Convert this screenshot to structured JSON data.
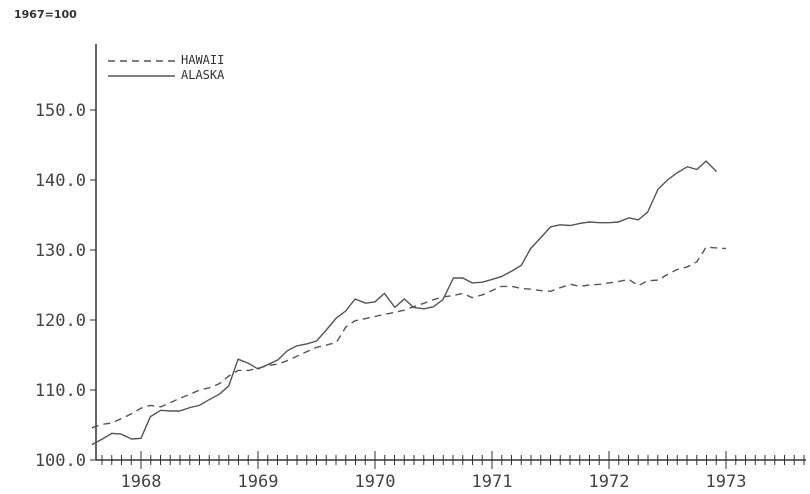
{
  "chart_data": {
    "type": "line",
    "index_note": "1967=100",
    "title": "",
    "xlabel": "",
    "ylabel": "",
    "y_ticks": [
      100,
      110,
      120,
      130,
      140,
      150
    ],
    "y_tick_labels": [
      "100.0",
      "110.0",
      "120.0",
      "130.0",
      "140.0",
      "150.0"
    ],
    "ylim": [
      100,
      150
    ],
    "xlim": [
      1967.53,
      1973.42
    ],
    "x_tick_labels": [
      "1968",
      "1969",
      "1970",
      "1971",
      "1972",
      "1973"
    ],
    "x_tick_positions": [
      1968.0,
      1969.0,
      1970.0,
      1971.0,
      1972.0,
      1973.0
    ],
    "legend_position": "top-left",
    "grid": false,
    "series": [
      {
        "name": "HAWAII",
        "style": "dashed",
        "color": "#555555",
        "points": [
          [
            1967.58,
            104.6
          ],
          [
            1967.67,
            105.1
          ],
          [
            1967.75,
            105.3
          ],
          [
            1967.83,
            105.9
          ],
          [
            1967.92,
            106.6
          ],
          [
            1968.0,
            107.4
          ],
          [
            1968.08,
            107.8
          ],
          [
            1968.17,
            107.6
          ],
          [
            1968.25,
            108.2
          ],
          [
            1968.33,
            108.8
          ],
          [
            1968.42,
            109.4
          ],
          [
            1968.5,
            110.0
          ],
          [
            1968.58,
            110.3
          ],
          [
            1968.67,
            110.9
          ],
          [
            1968.75,
            112.0
          ],
          [
            1968.83,
            112.8
          ],
          [
            1968.92,
            112.8
          ],
          [
            1969.0,
            113.1
          ],
          [
            1969.08,
            113.5
          ],
          [
            1969.17,
            113.7
          ],
          [
            1969.25,
            114.2
          ],
          [
            1969.33,
            114.8
          ],
          [
            1969.42,
            115.5
          ],
          [
            1969.5,
            116.1
          ],
          [
            1969.58,
            116.4
          ],
          [
            1969.67,
            116.8
          ],
          [
            1969.75,
            119.0
          ],
          [
            1969.83,
            119.9
          ],
          [
            1969.92,
            120.2
          ],
          [
            1970.0,
            120.5
          ],
          [
            1970.08,
            120.8
          ],
          [
            1970.17,
            121.1
          ],
          [
            1970.25,
            121.4
          ],
          [
            1970.33,
            121.9
          ],
          [
            1970.42,
            122.4
          ],
          [
            1970.5,
            122.9
          ],
          [
            1970.58,
            123.3
          ],
          [
            1970.67,
            123.5
          ],
          [
            1970.75,
            123.8
          ],
          [
            1970.83,
            123.2
          ],
          [
            1970.92,
            123.6
          ],
          [
            1971.0,
            124.2
          ],
          [
            1971.08,
            124.8
          ],
          [
            1971.17,
            124.8
          ],
          [
            1971.25,
            124.5
          ],
          [
            1971.33,
            124.4
          ],
          [
            1971.42,
            124.2
          ],
          [
            1971.5,
            124.1
          ],
          [
            1971.58,
            124.6
          ],
          [
            1971.67,
            125.1
          ],
          [
            1971.75,
            124.8
          ],
          [
            1971.83,
            125.0
          ],
          [
            1971.92,
            125.1
          ],
          [
            1972.0,
            125.3
          ],
          [
            1972.08,
            125.5
          ],
          [
            1972.17,
            125.8
          ],
          [
            1972.25,
            124.9
          ],
          [
            1972.33,
            125.6
          ],
          [
            1972.42,
            125.7
          ],
          [
            1972.5,
            126.5
          ],
          [
            1972.58,
            127.2
          ],
          [
            1972.67,
            127.6
          ],
          [
            1972.75,
            128.3
          ],
          [
            1972.83,
            130.4
          ],
          [
            1972.92,
            130.3
          ],
          [
            1973.0,
            130.2
          ]
        ]
      },
      {
        "name": "ALASKA",
        "style": "solid",
        "color": "#555555",
        "points": [
          [
            1967.58,
            102.2
          ],
          [
            1967.67,
            103.0
          ],
          [
            1967.75,
            103.8
          ],
          [
            1967.83,
            103.7
          ],
          [
            1967.92,
            103.0
          ],
          [
            1968.0,
            103.1
          ],
          [
            1968.08,
            106.2
          ],
          [
            1968.17,
            107.1
          ],
          [
            1968.25,
            107.0
          ],
          [
            1968.33,
            107.0
          ],
          [
            1968.42,
            107.5
          ],
          [
            1968.5,
            107.8
          ],
          [
            1968.58,
            108.6
          ],
          [
            1968.67,
            109.4
          ],
          [
            1968.75,
            110.6
          ],
          [
            1968.83,
            114.4
          ],
          [
            1968.92,
            113.8
          ],
          [
            1969.0,
            113.0
          ],
          [
            1969.08,
            113.6
          ],
          [
            1969.17,
            114.3
          ],
          [
            1969.25,
            115.6
          ],
          [
            1969.33,
            116.3
          ],
          [
            1969.42,
            116.6
          ],
          [
            1969.5,
            117.0
          ],
          [
            1969.58,
            118.5
          ],
          [
            1969.67,
            120.3
          ],
          [
            1969.75,
            121.3
          ],
          [
            1969.83,
            123.0
          ],
          [
            1969.92,
            122.4
          ],
          [
            1970.0,
            122.6
          ],
          [
            1970.08,
            123.8
          ],
          [
            1970.17,
            121.8
          ],
          [
            1970.25,
            123.0
          ],
          [
            1970.33,
            121.8
          ],
          [
            1970.42,
            121.6
          ],
          [
            1970.5,
            121.9
          ],
          [
            1970.58,
            122.9
          ],
          [
            1970.67,
            126.0
          ],
          [
            1970.75,
            126.0
          ],
          [
            1970.83,
            125.3
          ],
          [
            1970.92,
            125.4
          ],
          [
            1971.0,
            125.8
          ],
          [
            1971.08,
            126.2
          ],
          [
            1971.17,
            127.0
          ],
          [
            1971.25,
            127.8
          ],
          [
            1971.33,
            130.2
          ],
          [
            1971.42,
            131.8
          ],
          [
            1971.5,
            133.3
          ],
          [
            1971.58,
            133.6
          ],
          [
            1971.67,
            133.5
          ],
          [
            1971.75,
            133.8
          ],
          [
            1971.83,
            134.0
          ],
          [
            1971.92,
            133.9
          ],
          [
            1972.0,
            133.9
          ],
          [
            1972.08,
            134.0
          ],
          [
            1972.17,
            134.6
          ],
          [
            1972.25,
            134.3
          ],
          [
            1972.33,
            135.4
          ],
          [
            1972.42,
            138.7
          ],
          [
            1972.5,
            140.0
          ],
          [
            1972.58,
            141.0
          ],
          [
            1972.67,
            141.9
          ],
          [
            1972.75,
            141.5
          ],
          [
            1972.83,
            142.7
          ],
          [
            1972.92,
            141.2
          ]
        ]
      }
    ]
  }
}
